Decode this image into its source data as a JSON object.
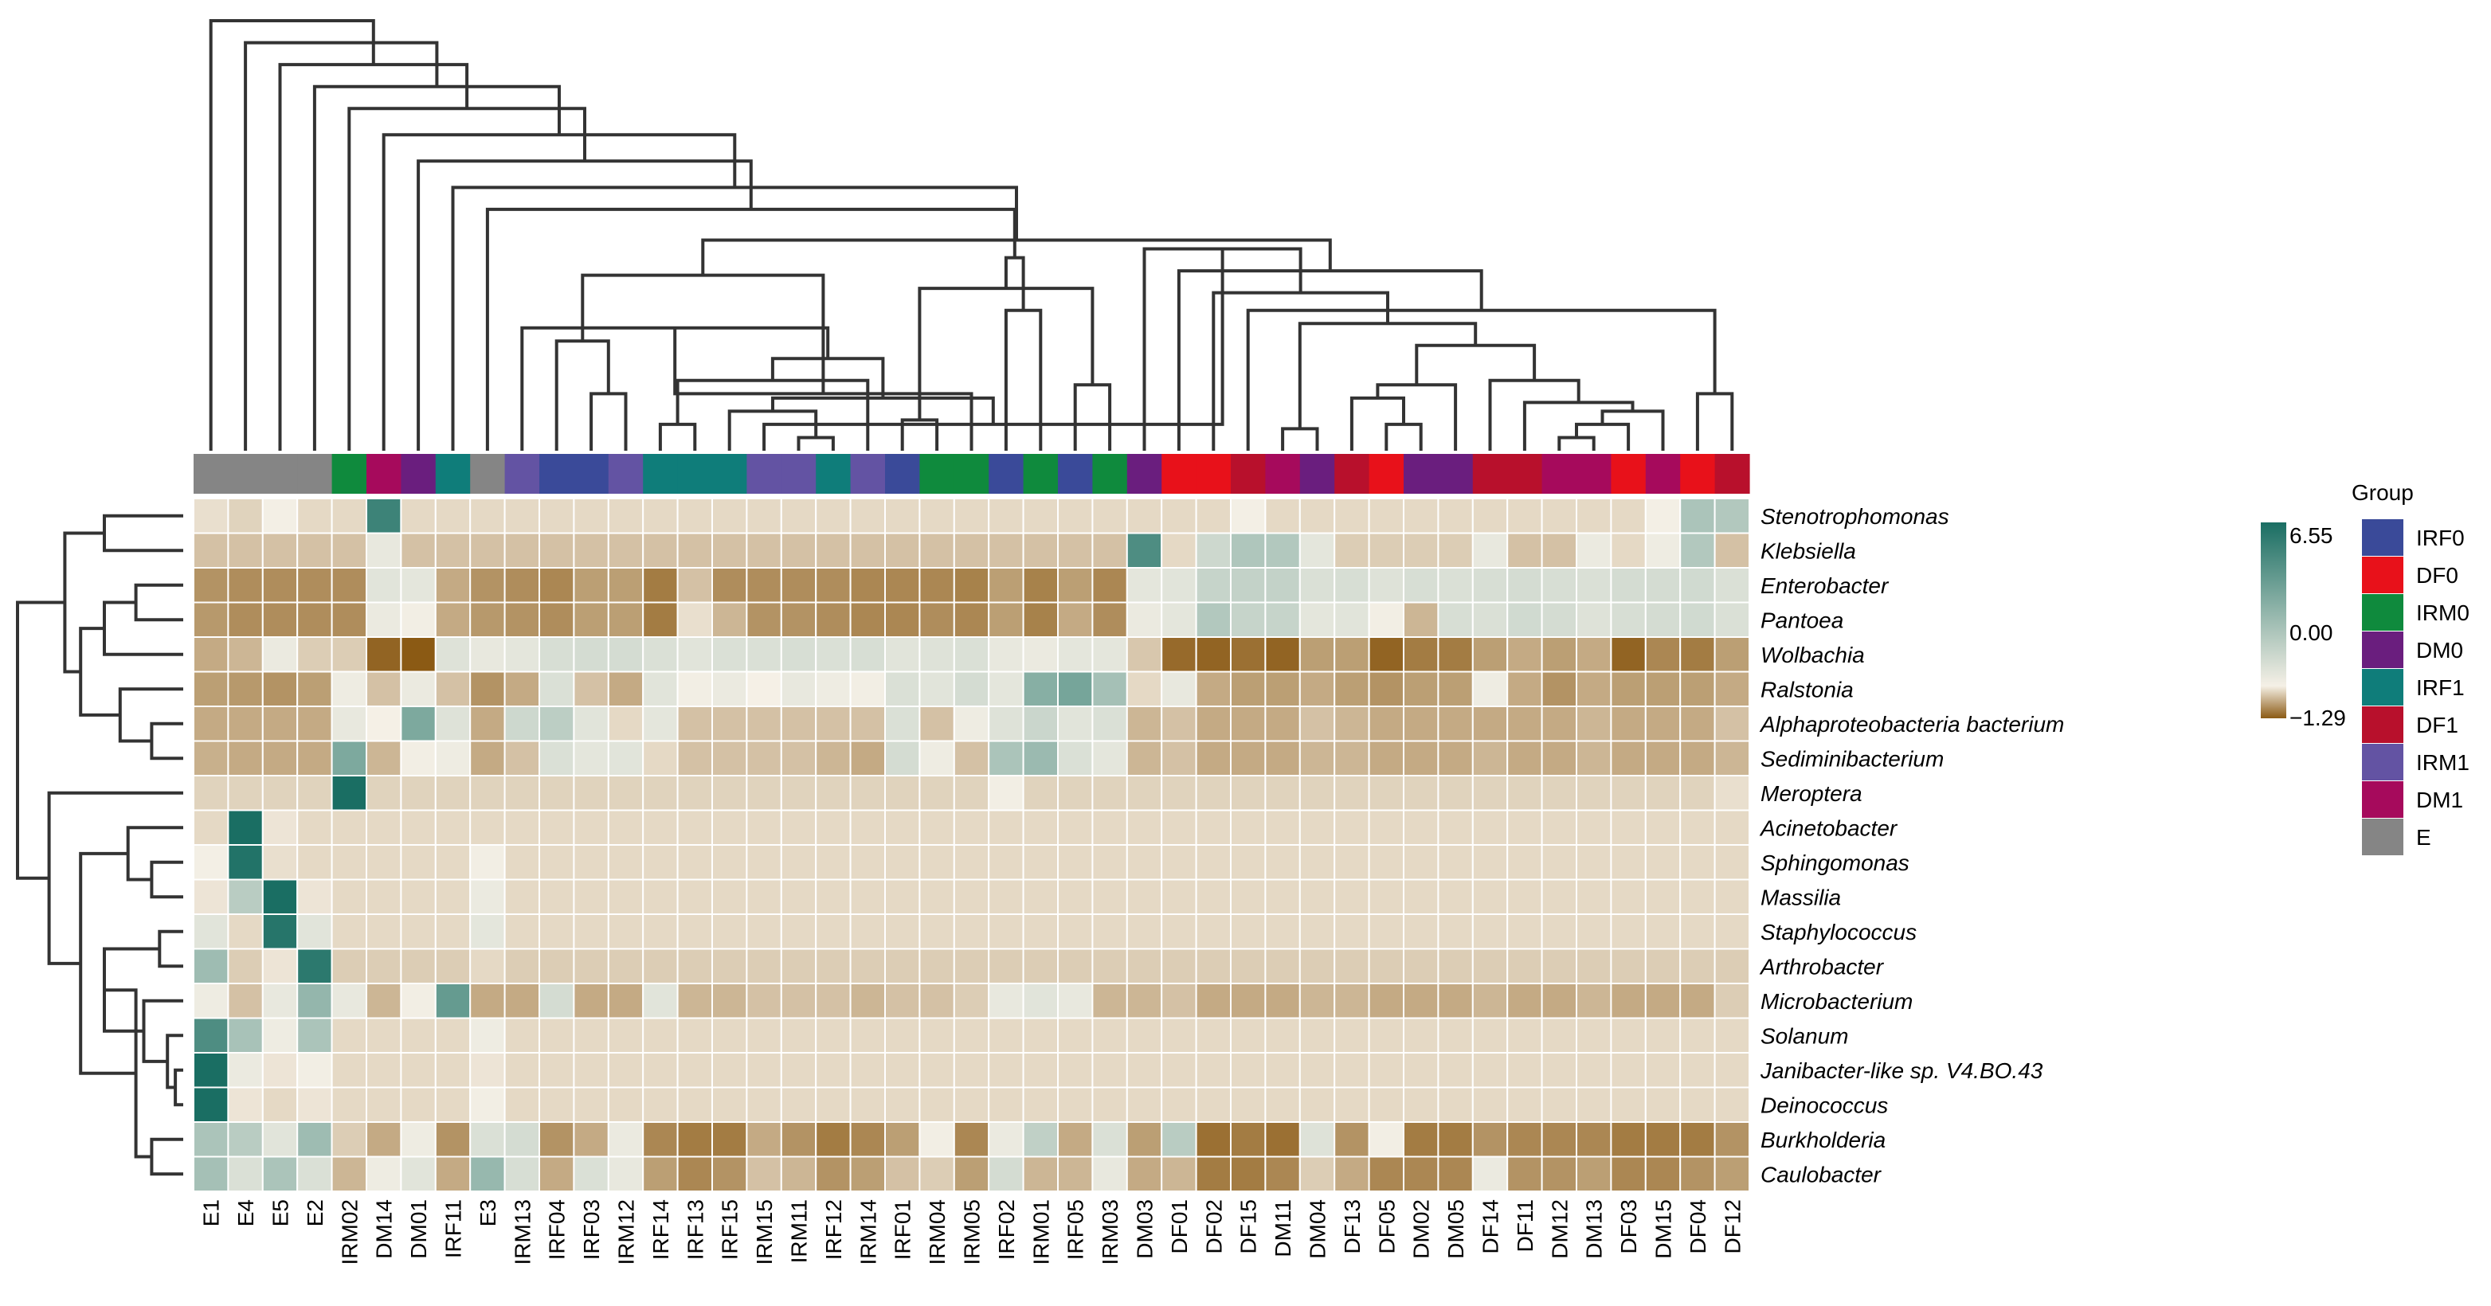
{
  "chart_data": {
    "type": "heatmap",
    "title": "",
    "columns": [
      "E1",
      "E4",
      "E5",
      "E2",
      "IRM02",
      "DM14",
      "DM01",
      "IRF11",
      "E3",
      "IRM13",
      "IRF04",
      "IRF03",
      "IRM12",
      "IRF14",
      "IRF13",
      "IRF15",
      "IRM15",
      "IRM11",
      "IRF12",
      "IRM14",
      "IRF01",
      "IRM04",
      "IRM05",
      "IRF02",
      "IRM01",
      "IRF05",
      "IRM03",
      "DM03",
      "DF01",
      "DF02",
      "DF15",
      "DM11",
      "DM04",
      "DF13",
      "DF05",
      "DM02",
      "DM05",
      "DF14",
      "DF11",
      "DM12",
      "DM13",
      "DF03",
      "DM15",
      "DF04",
      "DF12"
    ],
    "column_groups": [
      "E",
      "E",
      "E",
      "E",
      "IRM0",
      "DM1",
      "DM0",
      "IRF1",
      "E",
      "IRM1",
      "IRF0",
      "IRF0",
      "IRM1",
      "IRF1",
      "IRF1",
      "IRF1",
      "IRM1",
      "IRM1",
      "IRF1",
      "IRM1",
      "IRF0",
      "IRM0",
      "IRM0",
      "IRF0",
      "IRM0",
      "IRF0",
      "IRM0",
      "DM0",
      "DF0",
      "DF0",
      "DF1",
      "DM1",
      "DM0",
      "DF1",
      "DF0",
      "DM0",
      "DM0",
      "DF1",
      "DF1",
      "DM1",
      "DM1",
      "DF0",
      "DM1",
      "DF0",
      "DF1"
    ],
    "rows": [
      "Stenotrophomonas",
      "Klebsiella",
      "Enterobacter",
      "Pantoea",
      "Wolbachia",
      "Ralstonia",
      "Alphaproteobacteria bacterium",
      "Sediminibacterium",
      "Meroptera",
      "Acinetobacter",
      "Sphingomonas",
      "Massilia",
      "Staphylococcus",
      "Arthrobacter",
      "Microbacterium",
      "Solanum",
      "Janibacter-like sp. V4.BO.43",
      "Deinococcus",
      "Burkholderia",
      "Caulobacter"
    ],
    "values": [
      [
        -0.15,
        -0.25,
        0.05,
        -0.2,
        -0.2,
        5.5,
        -0.2,
        -0.2,
        -0.2,
        -0.2,
        -0.2,
        -0.2,
        -0.2,
        -0.2,
        -0.2,
        -0.2,
        -0.2,
        -0.2,
        -0.2,
        -0.2,
        -0.2,
        -0.2,
        -0.2,
        -0.2,
        -0.2,
        -0.2,
        -0.2,
        -0.2,
        -0.2,
        -0.2,
        0.05,
        -0.2,
        -0.2,
        -0.2,
        -0.2,
        -0.2,
        -0.2,
        -0.2,
        -0.2,
        -0.2,
        -0.2,
        -0.2,
        0.05,
        2.2,
        2.0
      ],
      [
        -0.4,
        -0.4,
        -0.4,
        -0.4,
        -0.4,
        0.4,
        -0.4,
        -0.4,
        -0.4,
        -0.4,
        -0.4,
        -0.4,
        -0.4,
        -0.4,
        -0.4,
        -0.4,
        -0.4,
        -0.4,
        -0.4,
        -0.4,
        -0.4,
        -0.4,
        -0.4,
        -0.4,
        -0.4,
        -0.4,
        -0.4,
        5.0,
        -0.2,
        1.2,
        2.1,
        2.0,
        0.5,
        -0.3,
        -0.3,
        -0.3,
        -0.3,
        0.4,
        -0.4,
        -0.4,
        0.3,
        -0.2,
        0.2,
        2.0,
        -0.4
      ],
      [
        -0.8,
        -0.85,
        -0.85,
        -0.85,
        -0.85,
        0.6,
        0.5,
        -0.6,
        -0.8,
        -0.85,
        -0.9,
        -0.7,
        -0.7,
        -1.0,
        -0.4,
        -0.85,
        -0.85,
        -0.85,
        -0.85,
        -0.9,
        -0.9,
        -0.9,
        -0.95,
        -0.7,
        -0.95,
        -0.7,
        -0.9,
        0.5,
        0.6,
        1.4,
        1.5,
        1.5,
        0.8,
        0.9,
        0.7,
        0.9,
        0.8,
        0.9,
        1.0,
        0.9,
        0.8,
        1.0,
        1.0,
        1.1,
        0.8
      ],
      [
        -0.75,
        -0.85,
        -0.85,
        -0.85,
        -0.85,
        0.3,
        0.1,
        -0.6,
        -0.75,
        -0.8,
        -0.85,
        -0.7,
        -0.7,
        -1.0,
        -0.15,
        -0.5,
        -0.8,
        -0.8,
        -0.85,
        -0.9,
        -0.9,
        -0.85,
        -0.9,
        -0.7,
        -0.95,
        -0.6,
        -0.85,
        0.3,
        0.5,
        2.0,
        1.4,
        1.4,
        0.5,
        0.6,
        0.1,
        -0.5,
        0.9,
        0.8,
        1.1,
        1.0,
        0.7,
        0.9,
        1.0,
        1.1,
        0.8
      ],
      [
        -0.6,
        -0.5,
        0.3,
        -0.3,
        -0.3,
        -1.2,
        -1.29,
        0.7,
        0.4,
        0.5,
        0.9,
        1.0,
        1.0,
        0.8,
        0.6,
        0.8,
        0.8,
        0.9,
        0.8,
        0.9,
        0.6,
        0.7,
        0.8,
        0.4,
        0.3,
        0.5,
        0.5,
        -0.35,
        -1.15,
        -1.2,
        -1.1,
        -1.2,
        -0.7,
        -0.7,
        -1.2,
        -1.0,
        -1.0,
        -0.7,
        -0.6,
        -0.7,
        -0.6,
        -1.2,
        -0.9,
        -1.0,
        -0.7
      ],
      [
        -0.7,
        -0.75,
        -0.8,
        -0.7,
        0.2,
        -0.4,
        0.3,
        -0.4,
        -0.8,
        -0.6,
        0.8,
        -0.4,
        -0.6,
        0.6,
        0.1,
        0.3,
        0.0,
        0.4,
        0.2,
        0.1,
        0.8,
        0.6,
        1.0,
        0.5,
        3.3,
        3.8,
        2.4,
        -0.2,
        0.4,
        -0.6,
        -0.7,
        -0.7,
        -0.6,
        -0.7,
        -0.8,
        -0.7,
        -0.7,
        0.2,
        -0.6,
        -0.8,
        -0.6,
        -0.7,
        -0.7,
        -0.7,
        -0.6
      ],
      [
        -0.6,
        -0.6,
        -0.6,
        -0.6,
        0.4,
        0.0,
        3.6,
        0.7,
        -0.6,
        1.2,
        1.7,
        0.6,
        -0.2,
        0.5,
        -0.4,
        -0.4,
        -0.4,
        -0.4,
        -0.4,
        -0.4,
        0.8,
        -0.4,
        0.2,
        0.7,
        1.3,
        0.6,
        0.8,
        -0.5,
        -0.4,
        -0.6,
        -0.6,
        -0.6,
        -0.4,
        -0.5,
        -0.6,
        -0.6,
        -0.6,
        -0.6,
        -0.6,
        -0.6,
        -0.5,
        -0.6,
        -0.6,
        -0.6,
        -0.4
      ],
      [
        -0.55,
        -0.6,
        -0.6,
        -0.6,
        3.6,
        -0.5,
        0.1,
        0.2,
        -0.6,
        -0.4,
        0.8,
        0.5,
        0.6,
        -0.2,
        -0.4,
        -0.4,
        -0.4,
        -0.4,
        -0.5,
        -0.6,
        1.0,
        0.2,
        -0.4,
        2.2,
        2.7,
        0.8,
        0.5,
        -0.5,
        -0.4,
        -0.6,
        -0.6,
        -0.6,
        -0.5,
        -0.5,
        -0.6,
        -0.6,
        -0.6,
        -0.5,
        -0.6,
        -0.6,
        -0.5,
        -0.6,
        -0.6,
        -0.6,
        -0.5
      ],
      [
        -0.25,
        -0.25,
        -0.25,
        -0.25,
        6.55,
        -0.25,
        -0.25,
        -0.25,
        -0.25,
        -0.25,
        -0.25,
        -0.25,
        -0.25,
        -0.25,
        -0.25,
        -0.25,
        -0.25,
        -0.25,
        -0.25,
        -0.25,
        -0.25,
        -0.25,
        -0.25,
        0.1,
        -0.25,
        -0.25,
        -0.25,
        -0.25,
        -0.25,
        -0.25,
        -0.25,
        -0.25,
        -0.25,
        -0.25,
        -0.25,
        -0.25,
        -0.25,
        -0.25,
        -0.25,
        -0.25,
        -0.25,
        -0.25,
        -0.25,
        -0.25,
        -0.15
      ],
      [
        -0.2,
        6.55,
        -0.1,
        -0.2,
        -0.2,
        -0.2,
        -0.2,
        -0.2,
        -0.2,
        -0.2,
        -0.2,
        -0.2,
        -0.2,
        -0.2,
        -0.2,
        -0.2,
        -0.2,
        -0.2,
        -0.2,
        -0.2,
        -0.2,
        -0.2,
        -0.2,
        -0.2,
        -0.2,
        -0.2,
        -0.2,
        -0.2,
        -0.2,
        -0.2,
        -0.2,
        -0.2,
        -0.2,
        -0.2,
        -0.2,
        -0.2,
        -0.2,
        -0.2,
        -0.2,
        -0.2,
        -0.2,
        -0.2,
        -0.2,
        -0.2,
        -0.2
      ],
      [
        0.05,
        6.3,
        -0.15,
        -0.2,
        -0.2,
        -0.2,
        -0.2,
        -0.2,
        0.1,
        -0.2,
        -0.2,
        -0.2,
        -0.2,
        -0.2,
        -0.2,
        -0.2,
        -0.2,
        -0.2,
        -0.2,
        -0.2,
        -0.2,
        -0.2,
        -0.2,
        -0.2,
        -0.2,
        -0.2,
        -0.2,
        -0.2,
        -0.2,
        -0.2,
        -0.2,
        -0.2,
        -0.2,
        -0.2,
        -0.2,
        -0.2,
        -0.2,
        -0.2,
        -0.2,
        -0.2,
        -0.2,
        -0.2,
        -0.2,
        -0.2,
        -0.2
      ],
      [
        -0.1,
        1.8,
        6.55,
        -0.1,
        -0.2,
        -0.2,
        -0.2,
        -0.2,
        0.3,
        -0.2,
        -0.2,
        -0.2,
        -0.2,
        -0.2,
        -0.2,
        -0.2,
        -0.2,
        -0.2,
        -0.2,
        -0.2,
        -0.2,
        -0.2,
        -0.2,
        -0.2,
        -0.2,
        -0.2,
        -0.2,
        -0.2,
        -0.2,
        -0.2,
        -0.2,
        -0.2,
        -0.2,
        -0.2,
        -0.2,
        -0.2,
        -0.2,
        -0.2,
        -0.2,
        -0.2,
        -0.2,
        -0.2,
        -0.2,
        -0.2,
        -0.2
      ],
      [
        0.6,
        -0.2,
        6.2,
        0.6,
        -0.2,
        -0.2,
        -0.2,
        -0.2,
        0.5,
        -0.2,
        -0.2,
        -0.2,
        -0.2,
        -0.2,
        -0.2,
        -0.2,
        -0.2,
        -0.2,
        -0.2,
        -0.2,
        -0.2,
        -0.2,
        -0.2,
        -0.2,
        -0.2,
        -0.2,
        -0.2,
        -0.2,
        -0.2,
        -0.2,
        -0.2,
        -0.2,
        -0.2,
        -0.2,
        -0.2,
        -0.2,
        -0.2,
        -0.2,
        -0.2,
        -0.2,
        -0.2,
        -0.2,
        -0.2,
        -0.2,
        -0.2
      ],
      [
        2.6,
        -0.3,
        -0.1,
        6.0,
        -0.3,
        -0.3,
        -0.3,
        -0.3,
        -0.2,
        -0.3,
        -0.3,
        -0.3,
        -0.3,
        -0.3,
        -0.3,
        -0.3,
        -0.3,
        -0.3,
        -0.3,
        -0.3,
        -0.3,
        -0.3,
        -0.3,
        -0.3,
        -0.3,
        -0.3,
        -0.3,
        -0.3,
        -0.3,
        -0.3,
        -0.3,
        -0.3,
        -0.3,
        -0.3,
        -0.3,
        -0.3,
        -0.3,
        -0.3,
        -0.3,
        -0.3,
        -0.3,
        -0.3,
        -0.3,
        -0.3,
        -0.3
      ],
      [
        0.2,
        -0.4,
        0.4,
        2.9,
        0.4,
        -0.5,
        0.1,
        4.3,
        -0.6,
        -0.6,
        1.0,
        -0.6,
        -0.6,
        0.6,
        -0.5,
        -0.5,
        -0.4,
        -0.4,
        -0.4,
        -0.5,
        -0.4,
        -0.4,
        -0.3,
        0.4,
        0.6,
        0.4,
        -0.5,
        -0.5,
        -0.4,
        -0.6,
        -0.6,
        -0.6,
        -0.5,
        -0.5,
        -0.6,
        -0.6,
        -0.6,
        -0.5,
        -0.6,
        -0.6,
        -0.5,
        -0.6,
        -0.6,
        -0.6,
        -0.3
      ],
      [
        5.0,
        2.3,
        0.2,
        2.2,
        -0.2,
        -0.2,
        -0.2,
        -0.2,
        0.2,
        -0.2,
        -0.2,
        -0.2,
        -0.2,
        -0.2,
        -0.2,
        -0.2,
        -0.2,
        -0.2,
        -0.2,
        -0.2,
        -0.2,
        -0.2,
        -0.2,
        -0.2,
        -0.2,
        -0.2,
        -0.2,
        -0.2,
        -0.2,
        -0.2,
        -0.2,
        -0.2,
        -0.2,
        -0.2,
        -0.2,
        -0.2,
        -0.2,
        -0.2,
        -0.2,
        -0.2,
        -0.2,
        -0.2,
        -0.2,
        -0.2,
        -0.2
      ],
      [
        6.55,
        0.3,
        -0.1,
        0.1,
        -0.2,
        -0.2,
        -0.2,
        -0.2,
        -0.1,
        -0.2,
        -0.2,
        -0.2,
        -0.2,
        -0.2,
        -0.2,
        -0.2,
        -0.2,
        -0.2,
        -0.2,
        -0.2,
        -0.2,
        -0.2,
        -0.2,
        -0.2,
        -0.2,
        -0.2,
        -0.2,
        -0.2,
        -0.2,
        -0.2,
        -0.2,
        -0.2,
        -0.2,
        -0.2,
        -0.2,
        -0.2,
        -0.2,
        -0.2,
        -0.2,
        -0.2,
        -0.2,
        -0.2,
        -0.2,
        -0.2,
        -0.2
      ],
      [
        6.55,
        -0.1,
        -0.2,
        -0.1,
        -0.2,
        -0.2,
        -0.2,
        -0.2,
        0.1,
        -0.2,
        -0.2,
        -0.2,
        -0.2,
        -0.2,
        -0.2,
        -0.2,
        -0.2,
        -0.2,
        -0.2,
        -0.2,
        -0.2,
        -0.2,
        -0.2,
        -0.2,
        -0.2,
        -0.2,
        -0.2,
        -0.2,
        -0.2,
        -0.2,
        -0.2,
        -0.2,
        -0.2,
        -0.2,
        -0.2,
        -0.2,
        -0.2,
        -0.2,
        -0.2,
        -0.2,
        -0.2,
        -0.2,
        -0.2,
        -0.2,
        -0.2
      ],
      [
        2.2,
        1.8,
        0.6,
        2.6,
        -0.3,
        -0.6,
        0.2,
        -0.8,
        0.8,
        1.0,
        -0.8,
        -0.6,
        0.3,
        -0.9,
        -1.0,
        -1.0,
        -0.6,
        -0.8,
        -1.0,
        -0.9,
        -0.7,
        0.1,
        -0.9,
        0.3,
        1.6,
        -0.6,
        0.8,
        -0.7,
        1.8,
        -1.1,
        -1.0,
        -1.1,
        0.7,
        -0.8,
        0.1,
        -1.0,
        -1.0,
        -0.8,
        -0.9,
        -0.9,
        -0.9,
        -1.0,
        -1.0,
        -1.0,
        -0.8
      ],
      [
        2.4,
        0.8,
        2.2,
        0.8,
        -0.5,
        0.2,
        0.6,
        -0.6,
        2.8,
        0.9,
        -0.6,
        0.8,
        0.4,
        -0.7,
        -0.9,
        -0.8,
        -0.4,
        -0.5,
        -0.8,
        -0.7,
        -0.4,
        -0.3,
        -0.7,
        1.0,
        -0.5,
        -0.5,
        0.4,
        -0.6,
        -0.5,
        -1.0,
        -1.0,
        -0.9,
        -0.3,
        -0.6,
        -0.9,
        -0.9,
        -0.9,
        0.3,
        -0.8,
        -0.8,
        -0.7,
        -0.9,
        -0.9,
        -0.8,
        -0.7
      ]
    ],
    "color_scale": {
      "min": -1.29,
      "mid": 0.0,
      "max": 6.55,
      "low_color": "#8b5a14",
      "mid_color": "#f5f0e6",
      "high_color": "#1a6e63",
      "tick_labels": [
        "6.55",
        "0.00",
        "−1.29"
      ]
    },
    "legend": {
      "title": "Group",
      "items": [
        {
          "label": "IRF0",
          "color": "#3a4a99"
        },
        {
          "label": "DF0",
          "color": "#e8111a"
        },
        {
          "label": "IRM0",
          "color": "#0f8a3d"
        },
        {
          "label": "DM0",
          "color": "#6a1e7e"
        },
        {
          "label": "IRF1",
          "color": "#0f7d7a"
        },
        {
          "label": "DF1",
          "color": "#b8102c"
        },
        {
          "label": "IRM1",
          "color": "#6353a3"
        },
        {
          "label": "DM1",
          "color": "#a60a5c"
        },
        {
          "label": "E",
          "color": "#858585"
        }
      ]
    },
    "row_dendrogram": [
      [
        17,
        16,
        0.2
      ],
      [
        20,
        15,
        0.4
      ],
      [
        21,
        14,
        1.0
      ],
      [
        13,
        12,
        0.6
      ],
      [
        23,
        22,
        2.0
      ],
      [
        19,
        18,
        0.8
      ],
      [
        25,
        24,
        1.2
      ],
      [
        11,
        10,
        0.8
      ],
      [
        27,
        9,
        1.4
      ],
      [
        28,
        26,
        2.6
      ],
      [
        29,
        8,
        3.4
      ],
      [
        7,
        6,
        0.8
      ],
      [
        31,
        5,
        1.6
      ],
      [
        3,
        2,
        1.2
      ],
      [
        33,
        4,
        2.0
      ],
      [
        34,
        32,
        2.6
      ],
      [
        1,
        0,
        2.0
      ],
      [
        36,
        35,
        3.0
      ],
      [
        37,
        30,
        4.2
      ]
    ],
    "col_dendrogram": [
      [
        39,
        40,
        0.3
      ],
      [
        41,
        45,
        0.6
      ],
      [
        46,
        42,
        0.9
      ],
      [
        38,
        47,
        1.1
      ],
      [
        37,
        48,
        1.6
      ],
      [
        34,
        35,
        0.6
      ],
      [
        50,
        33,
        1.2
      ],
      [
        51,
        36,
        1.5
      ],
      [
        52,
        49,
        2.4
      ],
      [
        31,
        32,
        0.5
      ],
      [
        43,
        44,
        1.3
      ],
      [
        53,
        54,
        2.9
      ],
      [
        30,
        55,
        3.2
      ],
      [
        29,
        56,
        3.6
      ],
      [
        28,
        57,
        4.1
      ],
      [
        58,
        27,
        4.6
      ],
      [
        17,
        18,
        0.3
      ],
      [
        60,
        16,
        0.6
      ],
      [
        61,
        15,
        0.9
      ],
      [
        13,
        14,
        0.6
      ],
      [
        63,
        62,
        1.2
      ],
      [
        64,
        19,
        1.6
      ],
      [
        12,
        11,
        1.3
      ],
      [
        65,
        66,
        2.1
      ],
      [
        67,
        10,
        2.5
      ],
      [
        68,
        9,
        2.8
      ],
      [
        20,
        21,
        0.7
      ],
      [
        22,
        70,
        1.3
      ],
      [
        25,
        26,
        1.5
      ],
      [
        23,
        24,
        3.2
      ],
      [
        71,
        73,
        3.7
      ],
      [
        69,
        72,
        4.0
      ],
      [
        74,
        75,
        4.4
      ],
      [
        76,
        59,
        4.8
      ],
      [
        77,
        8,
        5.5
      ],
      [
        78,
        7,
        6.0
      ],
      [
        79,
        6,
        6.6
      ],
      [
        80,
        5,
        7.2
      ],
      [
        81,
        4,
        7.8
      ],
      [
        82,
        3,
        8.3
      ],
      [
        83,
        2,
        8.8
      ],
      [
        84,
        1,
        9.3
      ],
      [
        85,
        0,
        9.8
      ]
    ]
  }
}
